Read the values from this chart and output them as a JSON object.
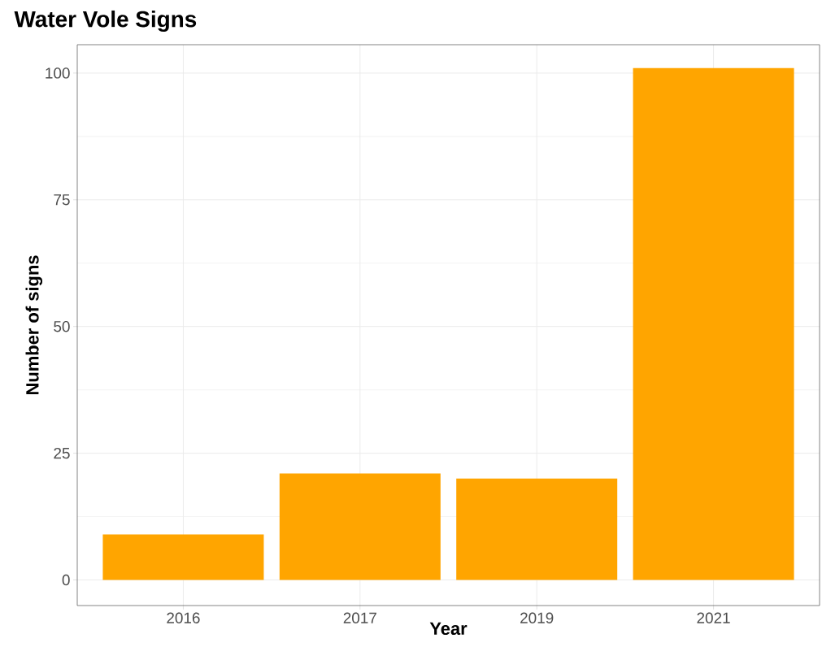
{
  "chart_data": {
    "type": "bar",
    "title": "Water Vole Signs",
    "xlabel": "Year",
    "ylabel": "Number of signs",
    "categories": [
      "2016",
      "2017",
      "2019",
      "2021"
    ],
    "values": [
      9,
      21,
      20,
      101
    ],
    "color": "#ffa500",
    "ylim": [
      -5.05,
      105.6
    ],
    "yticks": [
      0,
      25,
      50,
      75,
      100
    ],
    "grid": true
  }
}
